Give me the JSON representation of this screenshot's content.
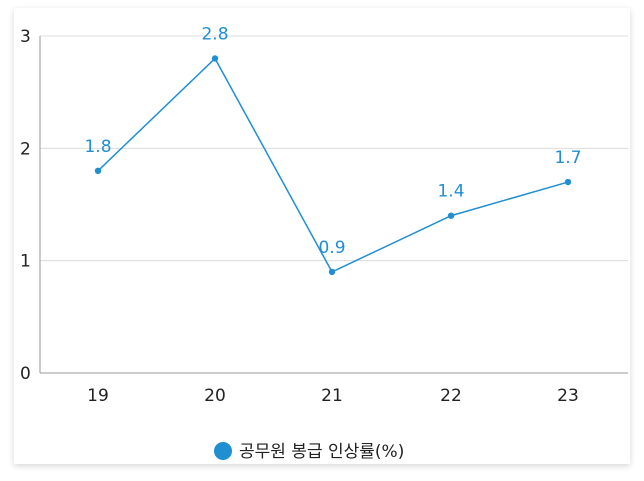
{
  "chart_data": {
    "type": "line",
    "categories": [
      "19",
      "20",
      "21",
      "22",
      "23"
    ],
    "series": [
      {
        "name": "공무원 봉급 인상률(%)",
        "values": [
          1.8,
          2.8,
          0.9,
          1.4,
          1.7
        ],
        "color": "#1f8fd2"
      }
    ],
    "data_labels": [
      "1.8",
      "2.8",
      "0.9",
      "1.4",
      "1.7"
    ],
    "y_ticks": [
      "0",
      "1",
      "2",
      "3"
    ],
    "ylim": [
      0,
      3
    ],
    "grid": true,
    "legend_position": "bottom-center"
  }
}
